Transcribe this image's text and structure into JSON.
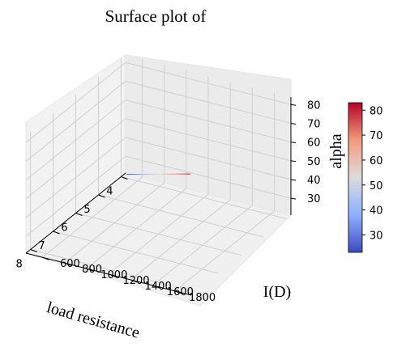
{
  "chart_data": {
    "type": "surface",
    "title": "Surface plot of",
    "xlabel": "load resistance",
    "ylabel": "I(D)",
    "zlabel": "alpha",
    "xlim": [
      3.8,
      8.2
    ],
    "ylim": [
      450,
      1950
    ],
    "zlim": [
      21,
      84
    ],
    "x_ticks": [
      4,
      5,
      6,
      7,
      8
    ],
    "y_ticks": [
      600,
      800,
      1000,
      1200,
      1400,
      1600,
      1800
    ],
    "z_ticks": [
      30,
      40,
      50,
      60,
      70,
      80
    ],
    "colorbar": {
      "colormap": "coolwarm",
      "range": [
        23,
        83
      ],
      "ticks": [
        30,
        40,
        50,
        60,
        70,
        80
      ]
    },
    "series": [
      {
        "x": [
          4.0,
          8.0
        ],
        "y": [
          500,
          1900
        ],
        "z": [
          23,
          83
        ]
      }
    ],
    "grid": true
  }
}
